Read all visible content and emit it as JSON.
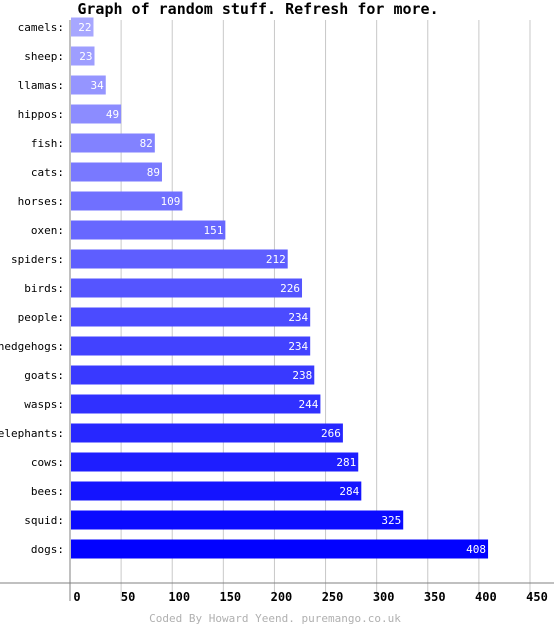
{
  "chart_data": {
    "type": "bar",
    "orientation": "horizontal",
    "title": "Graph of random stuff. Refresh for more.",
    "categories": [
      "camels",
      "sheep",
      "llamas",
      "hippos",
      "fish",
      "cats",
      "horses",
      "oxen",
      "spiders",
      "birds",
      "people",
      "hedgehogs",
      "goats",
      "wasps",
      "elephants",
      "cows",
      "bees",
      "squid",
      "dogs"
    ],
    "values": [
      22,
      23,
      34,
      49,
      82,
      89,
      109,
      151,
      212,
      226,
      234,
      234,
      238,
      244,
      266,
      281,
      284,
      325,
      408
    ],
    "xlim": [
      0,
      450
    ],
    "xticks": [
      "0",
      "50",
      "100",
      "150",
      "200",
      "250",
      "300",
      "350",
      "400",
      "450"
    ],
    "grid": "vertical",
    "colors": {
      "light": "#a7a7ff",
      "dark": "#0202ff",
      "grid": "#c8c8c8",
      "axis": "#808080"
    }
  },
  "credit": "Coded By Howard Yeend. puremango.co.uk"
}
